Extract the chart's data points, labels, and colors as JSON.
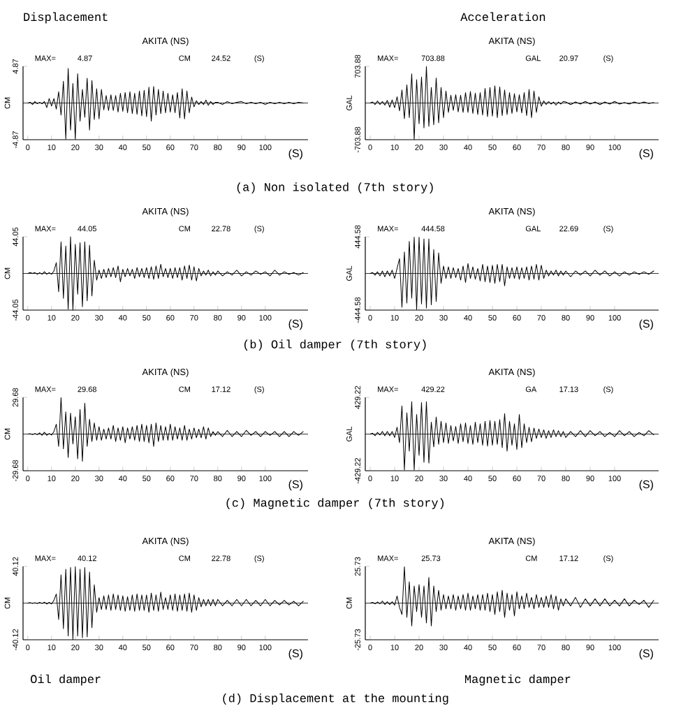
{
  "chart_data": [
    {
      "type": "line",
      "title": "AKITA (NS)",
      "subtitle": "Displacement",
      "xlabel": "(S)",
      "ylabel": "CM",
      "color": "#000000",
      "xlim": [
        -2,
        118
      ],
      "ylim": [
        -4.87,
        4.87
      ],
      "xticks": [
        0,
        10,
        20,
        30,
        40,
        50,
        60,
        70,
        80,
        90,
        100
      ],
      "yticks": [
        -4.87,
        4.87
      ],
      "ref_lines": [
        {
          "axis": "y",
          "value": 0
        }
      ],
      "annotations": [
        "MAX=",
        "4.87",
        "CM",
        "24.52",
        "(S)",
        "(a) Non isolated (7th story)"
      ],
      "x": [
        0,
        1,
        2,
        3,
        4,
        5,
        6,
        7,
        8,
        9,
        10,
        11,
        12,
        13,
        14,
        15,
        16,
        17,
        18,
        19,
        20,
        21,
        22,
        23,
        24,
        25,
        26,
        27,
        28,
        29,
        30,
        31,
        32,
        33,
        34,
        35,
        36,
        37,
        38,
        39,
        40,
        41,
        42,
        43,
        44,
        45,
        46,
        47,
        48,
        49,
        50,
        51,
        52,
        53,
        54,
        55,
        56,
        57,
        58,
        59,
        60,
        61,
        62,
        63,
        64,
        65,
        66,
        67,
        68,
        69,
        70,
        71,
        72,
        73,
        74,
        75,
        76,
        77,
        78,
        79,
        80,
        82,
        84,
        86,
        88,
        90,
        92,
        94,
        96,
        98,
        100,
        102,
        104,
        106,
        108,
        110,
        112,
        114,
        116
      ],
      "values": [
        0,
        0.1,
        -0.2,
        0.2,
        -0.1,
        0.1,
        -0.1,
        0.2,
        -0.6,
        0.6,
        -0.4,
        0.6,
        -0.8,
        1.5,
        -1.6,
        2.9,
        -4.8,
        4.6,
        -3.6,
        2.6,
        -4.8,
        3.9,
        -2.4,
        1.8,
        -1.9,
        3.3,
        -3.6,
        3.0,
        -2.2,
        1.9,
        -2.1,
        1.8,
        -0.9,
        1.0,
        -1.0,
        1.1,
        -1.0,
        1.0,
        -1.2,
        1.3,
        -1.1,
        1.4,
        -1.3,
        1.5,
        -1.4,
        1.3,
        -1.5,
        1.6,
        -1.7,
        1.7,
        -1.8,
        2.1,
        -2.4,
        2.2,
        -1.6,
        1.8,
        -1.4,
        1.6,
        -1.3,
        1.3,
        -1.2,
        1.1,
        -1.3,
        1.4,
        -2.0,
        1.9,
        -2.1,
        1.6,
        -1.3,
        0.8,
        -0.5,
        0.3,
        -0.2,
        0.2,
        -0.2,
        0.4,
        -0.3,
        0.2,
        -0.2,
        0.1,
        0.1,
        -0.2,
        0.2,
        -0.1,
        0.1,
        0.2,
        -0.1,
        0.1,
        -0.1,
        0.1,
        -0.2,
        0.1,
        -0.1,
        0.1,
        -0.1,
        0.1,
        -0.1,
        0.1,
        0
      ]
    },
    {
      "type": "line",
      "title": "AKITA (NS)",
      "subtitle": "Acceleration",
      "xlabel": "(S)",
      "ylabel": "GAL",
      "color": "#000000",
      "xlim": [
        -2,
        118
      ],
      "ylim": [
        -703.88,
        703.88
      ],
      "xticks": [
        0,
        10,
        20,
        30,
        40,
        50,
        60,
        70,
        80,
        90,
        100
      ],
      "yticks": [
        -703.88,
        703.88
      ],
      "ref_lines": [
        {
          "axis": "y",
          "value": 0
        }
      ],
      "annotations": [
        "MAX=",
        "703.88",
        "GAL",
        "20.97",
        "(S)"
      ],
      "x": [
        0,
        1,
        2,
        3,
        4,
        5,
        6,
        7,
        8,
        9,
        10,
        11,
        12,
        13,
        14,
        15,
        16,
        17,
        18,
        19,
        20,
        21,
        22,
        23,
        24,
        25,
        26,
        27,
        28,
        29,
        30,
        31,
        32,
        33,
        34,
        35,
        36,
        37,
        38,
        39,
        40,
        41,
        42,
        43,
        44,
        45,
        46,
        47,
        48,
        49,
        50,
        51,
        52,
        53,
        54,
        55,
        56,
        57,
        58,
        59,
        60,
        61,
        62,
        63,
        64,
        65,
        66,
        67,
        68,
        69,
        70,
        71,
        72,
        73,
        74,
        75,
        76,
        77,
        78,
        79,
        80,
        82,
        84,
        86,
        88,
        90,
        92,
        94,
        96,
        98,
        100,
        102,
        104,
        106,
        108,
        110,
        112,
        114,
        116
      ],
      "values": [
        0,
        20,
        -30,
        40,
        -30,
        30,
        -40,
        50,
        -80,
        60,
        -90,
        120,
        -150,
        250,
        -300,
        350,
        -280,
        560,
        -700,
        450,
        -400,
        500,
        -480,
        700,
        -450,
        300,
        -420,
        480,
        -380,
        300,
        -280,
        230,
        -180,
        150,
        -140,
        160,
        -170,
        150,
        -180,
        200,
        -180,
        220,
        -200,
        190,
        -220,
        200,
        -230,
        280,
        -260,
        300,
        -250,
        330,
        -280,
        310,
        -240,
        250,
        -220,
        200,
        -200,
        180,
        -170,
        160,
        -190,
        200,
        -240,
        260,
        -280,
        230,
        -180,
        120,
        -60,
        40,
        -30,
        30,
        -20,
        20,
        -40,
        20,
        -20,
        30,
        20,
        -30,
        20,
        -20,
        30,
        -20,
        20,
        -30,
        20,
        -20,
        30,
        -20,
        10,
        -20,
        20,
        -10,
        20,
        -10,
        10
      ]
    },
    {
      "type": "line",
      "title": "AKITA (NS)",
      "xlabel": "(S)",
      "ylabel": "CM",
      "color": "#000000",
      "xlim": [
        -2,
        118
      ],
      "ylim": [
        -44.05,
        44.05
      ],
      "xticks": [
        0,
        10,
        20,
        30,
        40,
        50,
        60,
        70,
        80,
        90,
        100
      ],
      "yticks": [
        -44.05,
        44.05
      ],
      "ref_lines": [
        {
          "axis": "y",
          "value": 0
        }
      ],
      "annotations": [
        "MAX=",
        "44.05",
        "CM",
        "22.78",
        "(S)",
        "(b) Oil damper (7th story)"
      ],
      "x": [
        0,
        1,
        2,
        3,
        4,
        5,
        6,
        7,
        8,
        9,
        10,
        11,
        12,
        13,
        14,
        15,
        16,
        17,
        18,
        19,
        20,
        21,
        22,
        23,
        24,
        25,
        26,
        27,
        28,
        29,
        30,
        31,
        32,
        33,
        34,
        35,
        36,
        37,
        38,
        39,
        40,
        41,
        42,
        43,
        44,
        45,
        46,
        47,
        48,
        49,
        50,
        51,
        52,
        53,
        54,
        55,
        56,
        57,
        58,
        59,
        60,
        61,
        62,
        63,
        64,
        65,
        66,
        67,
        68,
        69,
        70,
        71,
        72,
        73,
        74,
        75,
        76,
        77,
        78,
        79,
        80,
        82,
        84,
        86,
        88,
        90,
        92,
        94,
        96,
        98,
        100,
        102,
        104,
        106,
        108,
        110,
        112,
        114,
        116
      ],
      "values": [
        0,
        1,
        0,
        1,
        -1,
        1,
        -1,
        2,
        -1,
        1,
        -1,
        3,
        13,
        -22,
        38,
        -30,
        33,
        -43,
        44,
        -44,
        35,
        -25,
        37,
        -40,
        38,
        -33,
        34,
        -27,
        16,
        -8,
        4,
        -6,
        5,
        -5,
        6,
        -4,
        7,
        -5,
        9,
        -10,
        5,
        -4,
        6,
        -3,
        5,
        -6,
        7,
        -4,
        6,
        -5,
        7,
        -6,
        8,
        -7,
        9,
        -6,
        11,
        -4,
        6,
        -5,
        6,
        -6,
        7,
        -5,
        7,
        -8,
        9,
        -6,
        10,
        -8,
        8,
        -9,
        6,
        -3,
        3,
        -2,
        4,
        -3,
        2,
        -2,
        3,
        -3,
        2,
        -2,
        4,
        -3,
        2,
        -2,
        3,
        -1,
        2,
        -3,
        4,
        -2,
        2,
        -1,
        1,
        -2,
        1
      ]
    },
    {
      "type": "line",
      "title": "AKITA (NS)",
      "xlabel": "(S)",
      "ylabel": "GAL",
      "color": "#000000",
      "xlim": [
        -2,
        118
      ],
      "ylim": [
        -444.58,
        444.58
      ],
      "xticks": [
        0,
        10,
        20,
        30,
        40,
        50,
        60,
        70,
        80,
        90,
        100
      ],
      "yticks": [
        -444.58,
        444.58
      ],
      "ref_lines": [
        {
          "axis": "y",
          "value": 0
        }
      ],
      "annotations": [
        "MAX=",
        "444.58",
        "GAL",
        "22.69",
        "(S)"
      ],
      "x": [
        0,
        1,
        2,
        3,
        4,
        5,
        6,
        7,
        8,
        9,
        10,
        11,
        12,
        13,
        14,
        15,
        16,
        17,
        18,
        19,
        20,
        21,
        22,
        23,
        24,
        25,
        26,
        27,
        28,
        29,
        30,
        31,
        32,
        33,
        34,
        35,
        36,
        37,
        38,
        39,
        40,
        41,
        42,
        43,
        44,
        45,
        46,
        47,
        48,
        49,
        50,
        51,
        52,
        53,
        54,
        55,
        56,
        57,
        58,
        59,
        60,
        61,
        62,
        63,
        64,
        65,
        66,
        67,
        68,
        69,
        70,
        71,
        72,
        73,
        74,
        75,
        76,
        77,
        78,
        79,
        80,
        82,
        84,
        86,
        88,
        90,
        92,
        94,
        96,
        98,
        100,
        102,
        104,
        106,
        108,
        110,
        112,
        114,
        116
      ],
      "values": [
        0,
        10,
        -20,
        20,
        -30,
        30,
        -40,
        30,
        -30,
        40,
        -60,
        60,
        180,
        -410,
        260,
        -360,
        390,
        -300,
        440,
        -440,
        440,
        -370,
        420,
        -420,
        420,
        -380,
        290,
        -340,
        250,
        -120,
        90,
        -60,
        80,
        -60,
        70,
        -50,
        60,
        -80,
        90,
        -110,
        120,
        -60,
        80,
        -70,
        60,
        -90,
        110,
        -100,
        90,
        -110,
        100,
        -120,
        110,
        -100,
        110,
        -150,
        80,
        -60,
        70,
        -60,
        80,
        -70,
        70,
        -60,
        80,
        -80,
        90,
        -70,
        110,
        -80,
        100,
        -60,
        40,
        -30,
        30,
        -20,
        40,
        -30,
        30,
        -20,
        30,
        -40,
        30,
        -20,
        30,
        -30,
        40,
        -20,
        30,
        -30,
        20,
        -30,
        20,
        -20,
        20,
        -10,
        20,
        -10,
        30
      ]
    },
    {
      "type": "line",
      "title": "AKITA (NS)",
      "xlabel": "(S)",
      "ylabel": "CM",
      "color": "#000000",
      "xlim": [
        -2,
        118
      ],
      "ylim": [
        -29.68,
        29.68
      ],
      "xticks": [
        0,
        10,
        20,
        30,
        40,
        50,
        60,
        70,
        80,
        90,
        100
      ],
      "yticks": [
        -29.68,
        29.68
      ],
      "ref_lines": [
        {
          "axis": "y",
          "value": 0
        }
      ],
      "annotations": [
        "MAX=",
        "29.68",
        "CM",
        "17.12",
        "(S)",
        "(c) Magnetic damper (7th story)"
      ],
      "x": [
        0,
        1,
        2,
        3,
        4,
        5,
        6,
        7,
        8,
        9,
        10,
        11,
        12,
        13,
        14,
        15,
        16,
        17,
        18,
        19,
        20,
        21,
        22,
        23,
        24,
        25,
        26,
        27,
        28,
        29,
        30,
        31,
        32,
        33,
        34,
        35,
        36,
        37,
        38,
        39,
        40,
        41,
        42,
        43,
        44,
        45,
        46,
        47,
        48,
        49,
        50,
        51,
        52,
        53,
        54,
        55,
        56,
        57,
        58,
        59,
        60,
        61,
        62,
        63,
        64,
        65,
        66,
        67,
        68,
        69,
        70,
        71,
        72,
        73,
        74,
        75,
        76,
        77,
        78,
        79,
        80,
        82,
        84,
        86,
        88,
        90,
        92,
        94,
        96,
        98,
        100,
        102,
        104,
        106,
        108,
        110,
        112,
        114,
        116
      ],
      "values": [
        0,
        0.3,
        -0.5,
        0.5,
        -0.5,
        1,
        -1,
        1.5,
        -1,
        0.5,
        -0.8,
        2,
        8,
        -10,
        29.5,
        -12,
        18,
        -19,
        17,
        -8,
        14,
        -20,
        20,
        -22,
        25,
        -10,
        12,
        -6,
        9,
        -5,
        6,
        -5,
        4,
        -4,
        5,
        -4,
        7,
        -6,
        5,
        -5,
        6,
        -7,
        5,
        -4,
        6,
        -5,
        7,
        -6,
        8,
        -6,
        7,
        -7,
        8,
        -10,
        9,
        -6,
        7,
        -5,
        6,
        -5,
        8,
        -5,
        6,
        -4,
        5,
        -5,
        7,
        -5,
        4,
        -4,
        5,
        -3,
        4,
        -3,
        6,
        -4,
        5,
        -2,
        2,
        -1,
        2,
        -2,
        3,
        -2,
        2,
        -2,
        3,
        -1,
        2,
        -2,
        2,
        -1,
        2,
        -2,
        2,
        -2,
        2,
        -1,
        2
      ]
    },
    {
      "type": "line",
      "title": "AKITA (NS)",
      "xlabel": "(S)",
      "ylabel": "GAL",
      "color": "#000000",
      "xlim": [
        -2,
        118
      ],
      "ylim": [
        -429.22,
        429.22
      ],
      "xticks": [
        0,
        10,
        20,
        30,
        40,
        50,
        60,
        70,
        80,
        90,
        100
      ],
      "yticks": [
        -429.22,
        429.22
      ],
      "ref_lines": [
        {
          "axis": "y",
          "value": 0
        }
      ],
      "annotations": [
        "MAX=",
        "429.22",
        "GA",
        "17.13",
        "(S)"
      ],
      "x": [
        0,
        1,
        2,
        3,
        4,
        5,
        6,
        7,
        8,
        9,
        10,
        11,
        12,
        13,
        14,
        15,
        16,
        17,
        18,
        19,
        20,
        21,
        22,
        23,
        24,
        25,
        26,
        27,
        28,
        29,
        30,
        31,
        32,
        33,
        34,
        35,
        36,
        37,
        38,
        39,
        40,
        41,
        42,
        43,
        44,
        45,
        46,
        47,
        48,
        49,
        50,
        51,
        52,
        53,
        54,
        55,
        56,
        57,
        58,
        59,
        60,
        61,
        62,
        63,
        64,
        65,
        66,
        67,
        68,
        69,
        70,
        71,
        72,
        73,
        74,
        75,
        76,
        77,
        78,
        79,
        80,
        82,
        84,
        86,
        88,
        90,
        92,
        94,
        96,
        98,
        100,
        102,
        104,
        106,
        108,
        110,
        112,
        114,
        116
      ],
      "values": [
        0,
        10,
        -20,
        20,
        -10,
        30,
        -20,
        30,
        -20,
        30,
        -40,
        80,
        -100,
        330,
        -420,
        250,
        -200,
        380,
        -420,
        230,
        -250,
        370,
        -330,
        380,
        -340,
        140,
        -150,
        200,
        -120,
        150,
        -100,
        130,
        -110,
        100,
        -80,
        90,
        -110,
        120,
        -90,
        130,
        -110,
        100,
        -120,
        140,
        -100,
        120,
        -130,
        150,
        -140,
        160,
        -130,
        150,
        -120,
        170,
        -160,
        240,
        -200,
        150,
        -130,
        120,
        -180,
        230,
        -160,
        120,
        -100,
        80,
        -90,
        70,
        -50,
        60,
        -40,
        50,
        -50,
        40,
        -40,
        50,
        -30,
        40,
        -30,
        30,
        -40,
        30,
        -30,
        40,
        -30,
        40,
        -20,
        30,
        -30,
        20,
        -30,
        40,
        -20,
        30,
        -30,
        20,
        -20,
        40,
        -10
      ]
    },
    {
      "type": "line",
      "title": "AKITA (NS)",
      "xlabel": "(S)",
      "ylabel": "CM",
      "color": "#000000",
      "xlim": [
        -2,
        118
      ],
      "ylim": [
        -40.12,
        40.12
      ],
      "xticks": [
        0,
        10,
        20,
        30,
        40,
        50,
        60,
        70,
        80,
        90,
        100
      ],
      "yticks": [
        -40.12,
        40.12
      ],
      "ref_lines": [
        {
          "axis": "y",
          "value": 0
        }
      ],
      "annotations": [
        "MAX=",
        "40.12",
        "CM",
        "22.78",
        "(S)",
        "Oil damper",
        "(d) Displacement at the mounting"
      ],
      "x": [
        0,
        1,
        2,
        3,
        4,
        5,
        6,
        7,
        8,
        9,
        10,
        11,
        12,
        13,
        14,
        15,
        16,
        17,
        18,
        19,
        20,
        21,
        22,
        23,
        24,
        25,
        26,
        27,
        28,
        29,
        30,
        31,
        32,
        33,
        34,
        35,
        36,
        37,
        38,
        39,
        40,
        41,
        42,
        43,
        44,
        45,
        46,
        47,
        48,
        49,
        50,
        51,
        52,
        53,
        54,
        55,
        56,
        57,
        58,
        59,
        60,
        61,
        62,
        63,
        64,
        65,
        66,
        67,
        68,
        69,
        70,
        71,
        72,
        73,
        74,
        75,
        76,
        77,
        78,
        79,
        80,
        82,
        84,
        86,
        88,
        90,
        92,
        94,
        96,
        98,
        100,
        102,
        104,
        106,
        108,
        110,
        112,
        114,
        116
      ],
      "values": [
        0,
        0.5,
        -0.3,
        0.5,
        -0.5,
        0.8,
        -0.5,
        1,
        -1,
        0.8,
        -1,
        3,
        10,
        -18,
        31,
        -28,
        37,
        -36,
        39,
        -40,
        40,
        -36,
        37,
        -38,
        39,
        -37,
        34,
        -27,
        20,
        -10,
        6,
        -7,
        8,
        -7,
        9,
        -8,
        10,
        -7,
        9,
        -8,
        8,
        -9,
        7,
        -8,
        9,
        -9,
        10,
        -8,
        9,
        -8,
        9,
        -10,
        11,
        -8,
        9,
        -9,
        12,
        -7,
        6,
        -7,
        9,
        -8,
        10,
        -9,
        9,
        -8,
        10,
        -9,
        11,
        -10,
        9,
        -8,
        6,
        -4,
        4,
        -3,
        4,
        -3,
        4,
        -3,
        4,
        -3,
        3,
        -3,
        4,
        -3,
        4,
        -3,
        3,
        -3,
        4,
        -3,
        3,
        -2,
        3,
        -2,
        2,
        -3,
        2
      ]
    },
    {
      "type": "line",
      "title": "AKITA (NS)",
      "xlabel": "(S)",
      "ylabel": "CM",
      "color": "#000000",
      "xlim": [
        -2,
        118
      ],
      "ylim": [
        -25.73,
        25.73
      ],
      "xticks": [
        0,
        10,
        20,
        30,
        40,
        50,
        60,
        70,
        80,
        90,
        100
      ],
      "yticks": [
        -25.73,
        25.73
      ],
      "ref_lines": [
        {
          "axis": "y",
          "value": 0
        }
      ],
      "annotations": [
        "MAX=",
        "25.73",
        "CM",
        "17.12",
        "(S)",
        "Magnetic damper"
      ],
      "x": [
        0,
        1,
        2,
        3,
        4,
        5,
        6,
        7,
        8,
        9,
        10,
        11,
        12,
        13,
        14,
        15,
        16,
        17,
        18,
        19,
        20,
        21,
        22,
        23,
        24,
        25,
        26,
        27,
        28,
        29,
        30,
        31,
        32,
        33,
        34,
        35,
        36,
        37,
        38,
        39,
        40,
        41,
        42,
        43,
        44,
        45,
        46,
        47,
        48,
        49,
        50,
        51,
        52,
        53,
        54,
        55,
        56,
        57,
        58,
        59,
        60,
        61,
        62,
        63,
        64,
        65,
        66,
        67,
        68,
        69,
        70,
        71,
        72,
        73,
        74,
        75,
        76,
        77,
        78,
        79,
        80,
        82,
        84,
        86,
        88,
        90,
        92,
        94,
        96,
        98,
        100,
        102,
        104,
        106,
        108,
        110,
        112,
        114,
        116
      ],
      "values": [
        0,
        0.5,
        -0.5,
        0.8,
        -0.5,
        1.5,
        -1,
        1,
        -1,
        1,
        -1.5,
        5,
        -3,
        -8,
        25.5,
        -10,
        15,
        -16,
        12,
        -6,
        13,
        -10,
        12,
        -14,
        18,
        -16,
        12,
        -6,
        9,
        -5,
        6,
        -4,
        5,
        -4,
        6,
        -5,
        5,
        -4,
        6,
        -5,
        7,
        -5,
        5,
        -4,
        6,
        -5,
        6,
        -5,
        7,
        -6,
        6,
        -8,
        8,
        -6,
        9,
        -10,
        7,
        -5,
        6,
        -9,
        8,
        -4,
        5,
        -4,
        7,
        -3,
        4,
        -4,
        6,
        -3,
        4,
        -3,
        5,
        -3,
        6,
        -4,
        5,
        -5,
        3,
        -2,
        3,
        -2,
        4,
        -3,
        3,
        -2,
        3,
        -2,
        3,
        -2,
        2,
        -2,
        3,
        -2,
        2,
        -1,
        2,
        -3,
        2
      ]
    }
  ]
}
